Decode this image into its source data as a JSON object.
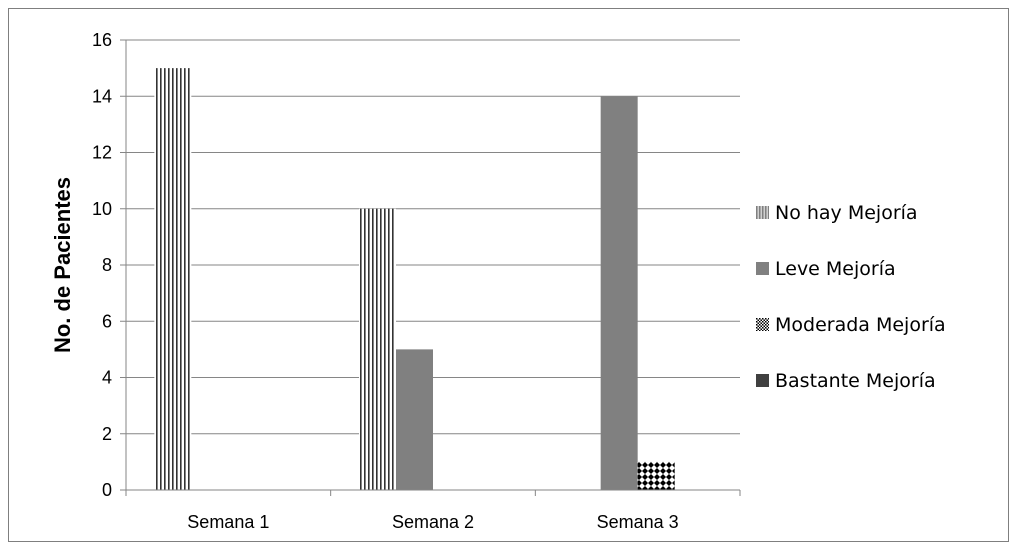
{
  "chart_data": {
    "type": "bar",
    "title": "",
    "xlabel": "",
    "ylabel": "No. de Pacientes",
    "ylim": [
      0,
      16
    ],
    "yticks": [
      0,
      2,
      4,
      6,
      8,
      10,
      12,
      14,
      16
    ],
    "grid": true,
    "legend_position": "right",
    "categories": [
      "Semana 1",
      "Semana 2",
      "Semana 3"
    ],
    "series": [
      {
        "name": "No hay Mejoría",
        "values": [
          15,
          10,
          0
        ],
        "color": "#a6a6a6",
        "pattern": "vertical-stripes"
      },
      {
        "name": "Leve Mejoría",
        "values": [
          0,
          5,
          14
        ],
        "color": "#808080",
        "pattern": "solid"
      },
      {
        "name": "Moderada Mejoría",
        "values": [
          0,
          0,
          1
        ],
        "color": "#000000",
        "pattern": "diamonds"
      },
      {
        "name": "Bastante Mejoría",
        "values": [
          0,
          0,
          0
        ],
        "color": "#404040",
        "pattern": "solid"
      }
    ]
  }
}
